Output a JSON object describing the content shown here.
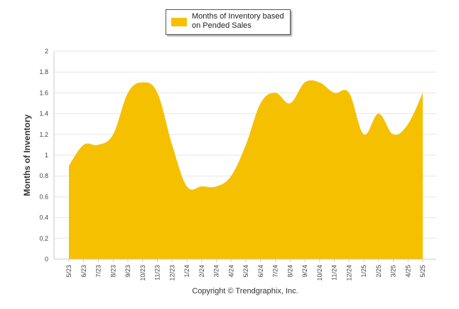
{
  "chart_data": {
    "type": "area",
    "categories": [
      "5/23",
      "6/23",
      "7/23",
      "8/23",
      "9/23",
      "10/23",
      "11/23",
      "12/23",
      "1/24",
      "2/24",
      "3/24",
      "4/24",
      "5/24",
      "6/24",
      "7/24",
      "8/24",
      "9/24",
      "10/24",
      "11/24",
      "12/24",
      "1/25",
      "2/25",
      "3/25",
      "4/25",
      "5/25"
    ],
    "series": [
      {
        "name": "Months of Inventory based on Pended Sales",
        "color": "#F5C000",
        "values": [
          0.9,
          1.1,
          1.1,
          1.2,
          1.6,
          1.7,
          1.6,
          1.1,
          0.7,
          0.7,
          0.7,
          0.8,
          1.1,
          1.5,
          1.6,
          1.5,
          1.7,
          1.7,
          1.6,
          1.6,
          1.2,
          1.4,
          1.2,
          1.3,
          1.6
        ]
      }
    ],
    "ylabel": "Months of Inventory",
    "xlabel": "",
    "ylim": [
      0,
      2
    ],
    "yticks": [
      0,
      0.2,
      0.4,
      0.6,
      0.8,
      1,
      1.2,
      1.4,
      1.6,
      1.8,
      2
    ],
    "grid": true,
    "legend_placement": "top-center"
  },
  "legend": {
    "label": "Months of Inventory based on Pended Sales",
    "color": "#F5C000"
  },
  "footer": {
    "copyright": "Copyright © Trendgraphix, Inc."
  }
}
